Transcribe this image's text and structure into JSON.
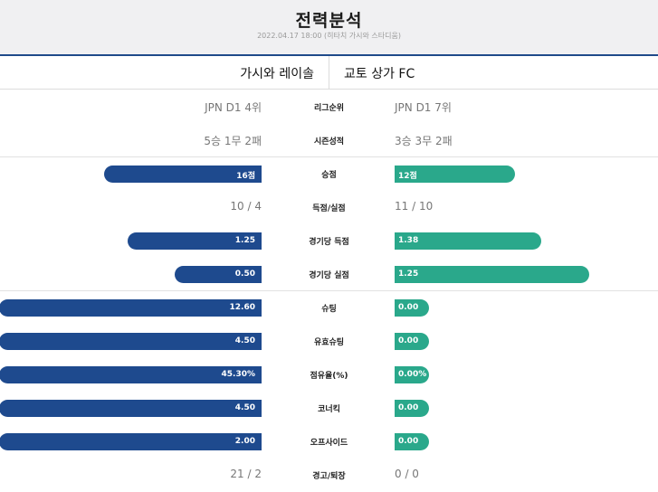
{
  "header": {
    "title": "전력분석",
    "subtitle": "2022.04.17 18:00 (히타치 가시와 스타디움)"
  },
  "teams": {
    "home": "가시와 레이솔",
    "away": "교토 상가 FC"
  },
  "colors": {
    "home_bar": "#1e4a8e",
    "away_bar": "#2aa88b",
    "header_bg": "#f0f0f2"
  },
  "stats": [
    {
      "label": "리그순위",
      "type": "text",
      "home": "JPN D1 4위",
      "away": "JPN D1 7위"
    },
    {
      "label": "시즌성적",
      "type": "text",
      "home": "5승 1무 2패",
      "away": "3승 3무 2패"
    },
    {
      "label": "승점",
      "type": "bar",
      "home": "16점",
      "away": "12점",
      "home_value": 16,
      "away_value": 12,
      "home_fill": 0.6,
      "away_fill": 0.46
    },
    {
      "label": "득점/실점",
      "type": "text",
      "home": "10 / 4",
      "away": "11 / 10"
    },
    {
      "label": "경기당 득점",
      "type": "bar",
      "home": "1.25",
      "away": "1.38",
      "home_value": 1.25,
      "away_value": 1.38,
      "home_fill": 0.51,
      "away_fill": 0.56
    },
    {
      "label": "경기당 실점",
      "type": "bar",
      "home": "0.50",
      "away": "1.25",
      "home_value": 0.5,
      "away_value": 1.25,
      "home_fill": 0.33,
      "away_fill": 0.74
    },
    {
      "label": "슈팅",
      "type": "bar",
      "home": "12.60",
      "away": "0.00",
      "home_value": 12.6,
      "away_value": 0.0,
      "home_fill": 1.0,
      "away_fill": 0.0
    },
    {
      "label": "유효슈팅",
      "type": "bar",
      "home": "4.50",
      "away": "0.00",
      "home_value": 4.5,
      "away_value": 0.0,
      "home_fill": 1.0,
      "away_fill": 0.0
    },
    {
      "label": "점유율(%)",
      "type": "bar",
      "home": "45.30%",
      "away": "0.00%",
      "home_value": 45.3,
      "away_value": 0.0,
      "home_fill": 1.0,
      "away_fill": 0.0
    },
    {
      "label": "코너킥",
      "type": "bar",
      "home": "4.50",
      "away": "0.00",
      "home_value": 4.5,
      "away_value": 0.0,
      "home_fill": 1.0,
      "away_fill": 0.0
    },
    {
      "label": "오프사이드",
      "type": "bar",
      "home": "2.00",
      "away": "0.00",
      "home_value": 2.0,
      "away_value": 0.0,
      "home_fill": 1.0,
      "away_fill": 0.0
    },
    {
      "label": "경고/퇴장",
      "type": "text",
      "home": "21 / 2",
      "away": "0 / 0"
    }
  ]
}
